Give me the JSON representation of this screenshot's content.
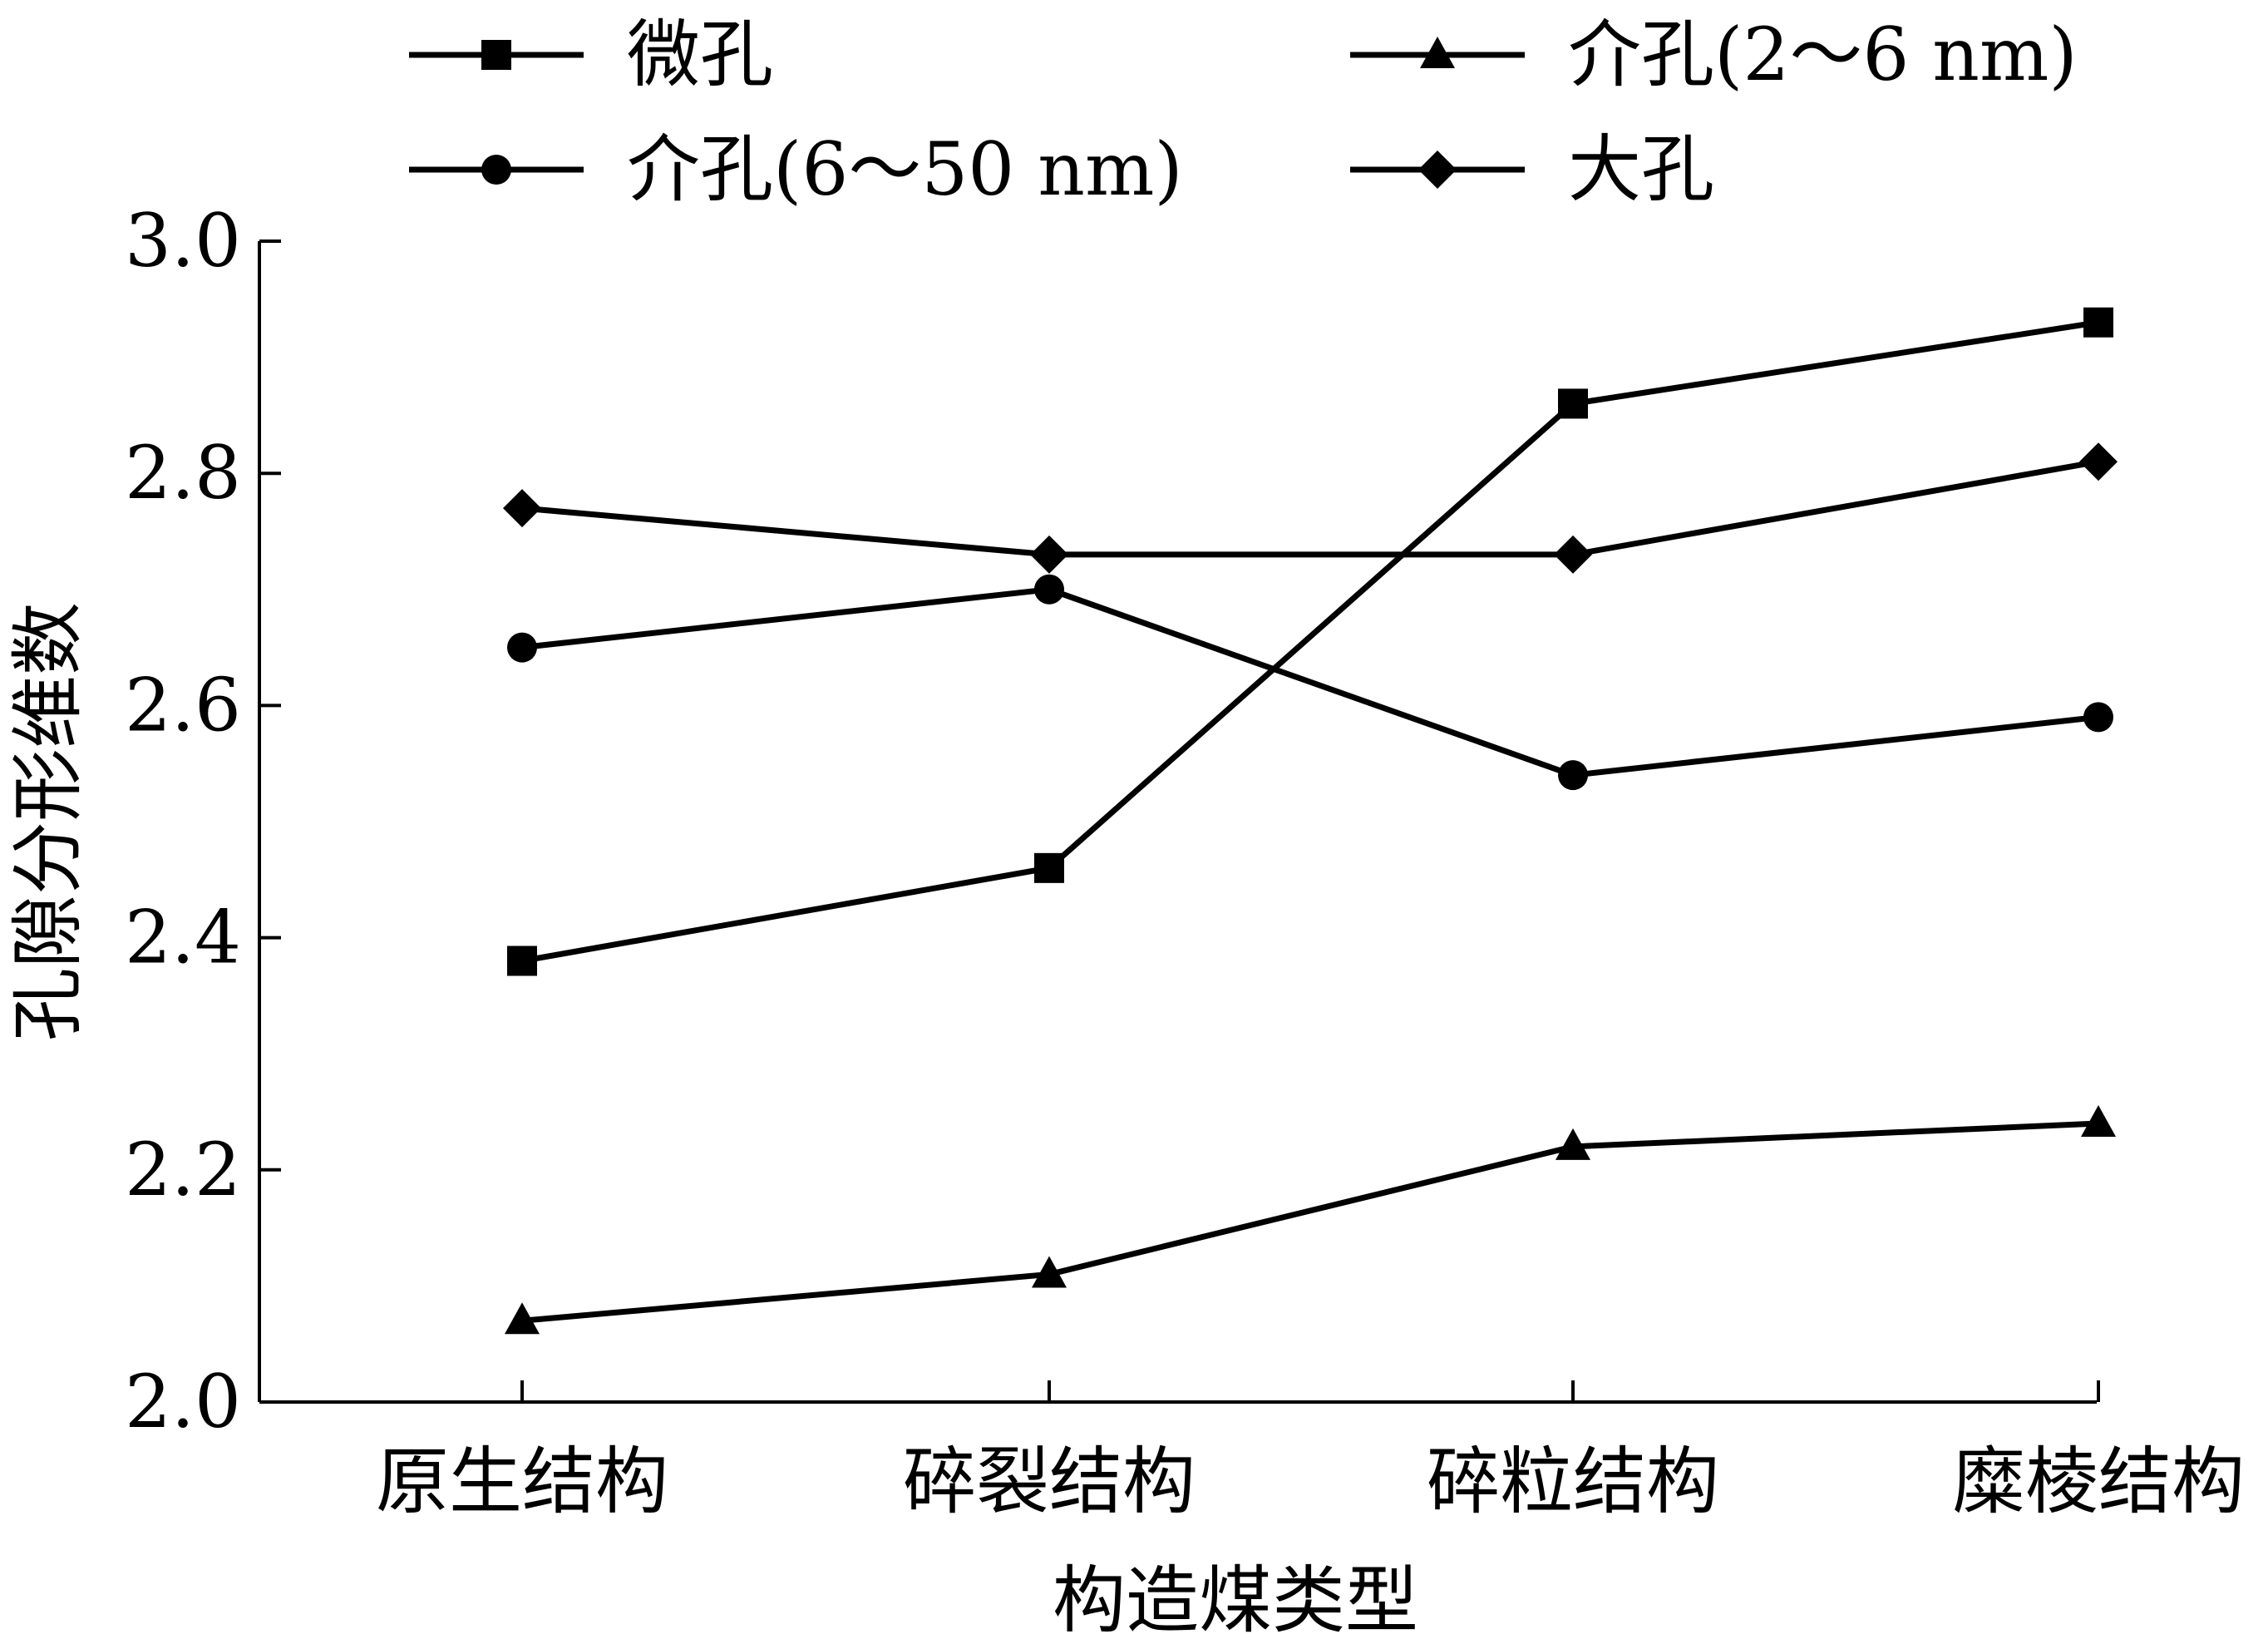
{
  "chart_data": {
    "type": "line",
    "title": "",
    "xlabel": "构造煤类型",
    "ylabel": "孔隙分形维数",
    "categories": [
      "原生结构",
      "碎裂结构",
      "碎粒结构",
      "糜棱结构"
    ],
    "ylim": [
      2.0,
      3.0
    ],
    "yticks": [
      "2.0",
      "2.2",
      "2.4",
      "2.6",
      "2.8",
      "3.0"
    ],
    "grid": false,
    "legend_position": "top",
    "series": [
      {
        "name": "微孔",
        "marker": "square",
        "values": [
          2.38,
          2.46,
          2.86,
          2.93
        ]
      },
      {
        "name": "介孔(2～6 nm)",
        "marker": "triangle",
        "values": [
          2.07,
          2.11,
          2.22,
          2.24
        ]
      },
      {
        "name": "介孔(6～50 nm)",
        "marker": "circle",
        "values": [
          2.65,
          2.7,
          2.54,
          2.59
        ]
      },
      {
        "name": "大孔",
        "marker": "diamond",
        "values": [
          2.77,
          2.73,
          2.73,
          2.81
        ]
      }
    ],
    "colors": {
      "line": "#000000",
      "background": "#ffffff"
    }
  }
}
